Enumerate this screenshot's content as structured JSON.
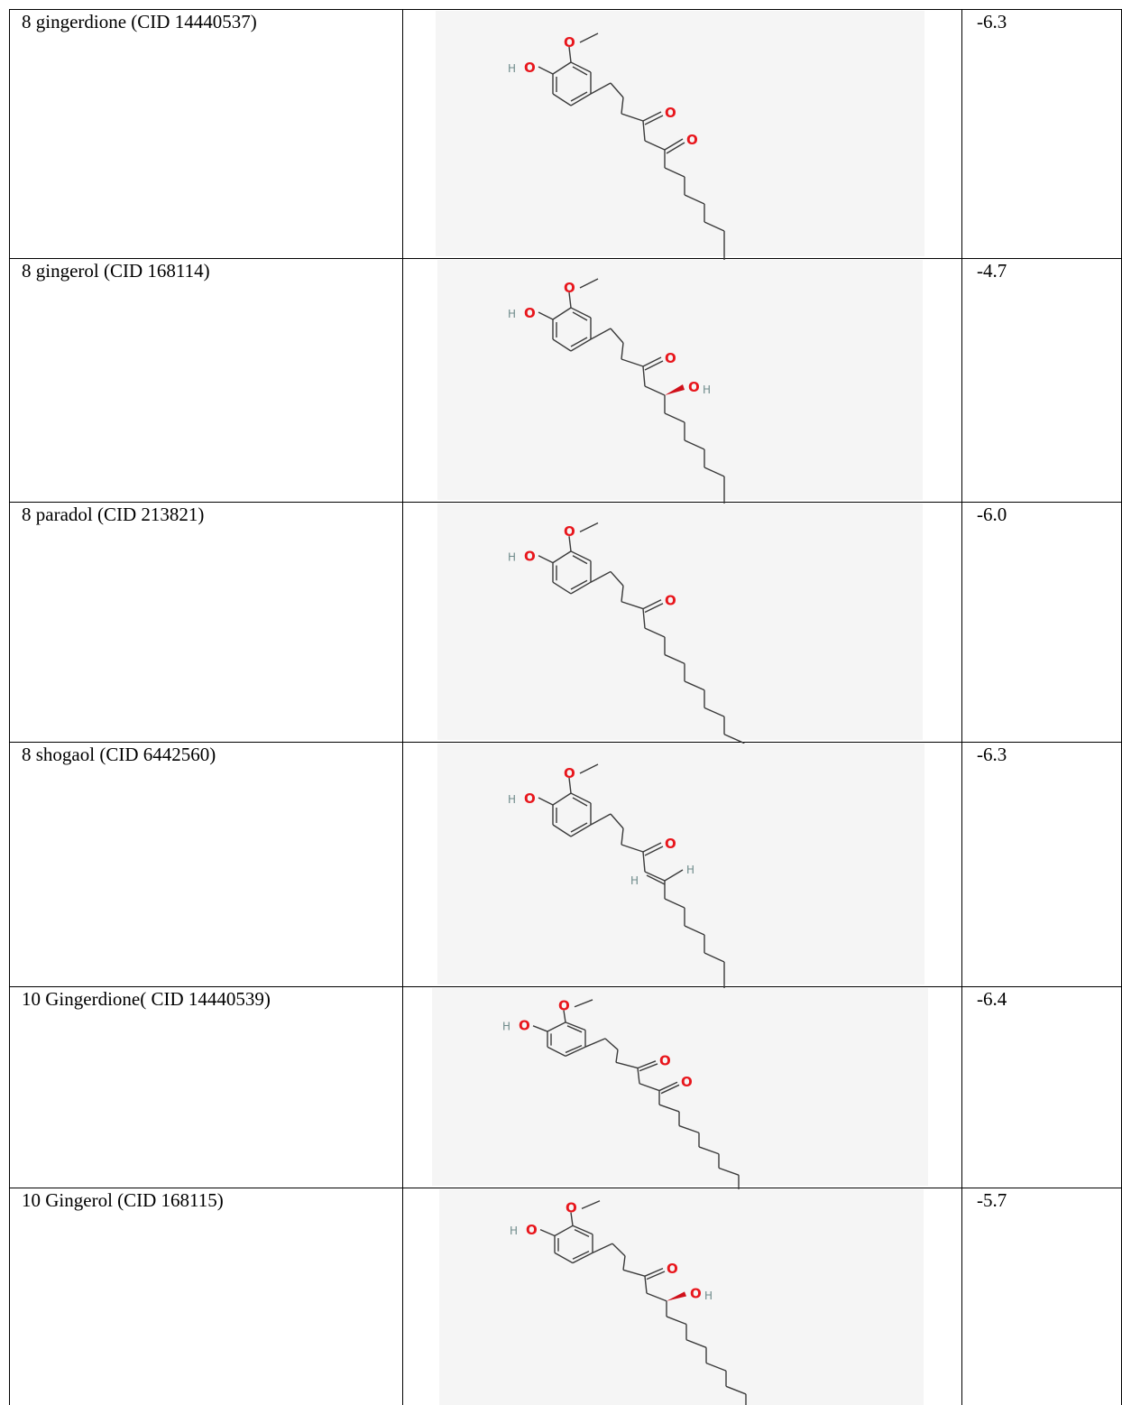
{
  "rows": [
    {
      "name": "8 gingerdione (CID 14440537)",
      "score": "-6.3",
      "structure": {
        "substituents": [
          "ketone",
          "ketone"
        ],
        "tail_bonds": 7,
        "atoms": {
          "o": "O",
          "h": "H"
        }
      }
    },
    {
      "name": "8 gingerol (CID 168114)",
      "score": "-4.7",
      "structure": {
        "substituents": [
          "ketone",
          "hydroxyl-wedge"
        ],
        "tail_bonds": 7,
        "atoms": {
          "o": "O",
          "h": "H"
        }
      }
    },
    {
      "name": "8 paradol (CID 213821)",
      "score": "-6.0",
      "structure": {
        "substituents": [
          "ketone",
          "none"
        ],
        "tail_bonds": 8,
        "atoms": {
          "o": "O",
          "h": "H"
        }
      }
    },
    {
      "name": "8 shogaol (CID 6442560)",
      "score": "-6.3",
      "structure": {
        "substituents": [
          "ketone",
          "alkene"
        ],
        "tail_bonds": 7,
        "atoms": {
          "o": "O",
          "h": "H"
        }
      }
    },
    {
      "name": "10 Gingerdione( CID 14440539)",
      "score": "-6.4",
      "structure": {
        "substituents": [
          "ketone",
          "ketone"
        ],
        "tail_bonds": 9,
        "atoms": {
          "o": "O",
          "h": "H"
        }
      }
    },
    {
      "name": "10 Gingerol (CID 168115)",
      "score": "-5.7",
      "structure": {
        "substituents": [
          "ketone",
          "hydroxyl-wedge"
        ],
        "tail_bonds": 9,
        "atoms": {
          "o": "O",
          "h": "H"
        }
      }
    }
  ],
  "colors": {
    "oxygen": "#e8161c",
    "hydrogen": "#6e8a8a",
    "bond": "#3a3a3a",
    "panel": "#f5f5f5",
    "wedge": "#d0101a"
  }
}
